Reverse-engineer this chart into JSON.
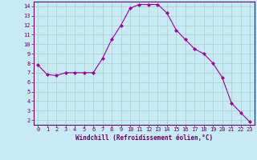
{
  "x": [
    0,
    1,
    2,
    3,
    4,
    5,
    6,
    7,
    8,
    9,
    10,
    11,
    12,
    13,
    14,
    15,
    16,
    17,
    18,
    19,
    20,
    21,
    22,
    23
  ],
  "y": [
    7.8,
    6.8,
    6.7,
    7.0,
    7.0,
    7.0,
    7.0,
    8.5,
    10.5,
    12.0,
    13.8,
    14.2,
    14.2,
    14.2,
    13.3,
    11.5,
    10.5,
    9.5,
    9.0,
    8.0,
    6.5,
    3.8,
    2.8,
    1.8
  ],
  "line_color": "#990099",
  "marker": "D",
  "marker_size": 2,
  "bg_color": "#c8eaf4",
  "grid_color": "#aacccc",
  "xlabel": "Windchill (Refroidissement éolien,°C)",
  "xlim": [
    -0.5,
    23.5
  ],
  "ylim": [
    1.5,
    14.5
  ],
  "xticks": [
    0,
    1,
    2,
    3,
    4,
    5,
    6,
    7,
    8,
    9,
    10,
    11,
    12,
    13,
    14,
    15,
    16,
    17,
    18,
    19,
    20,
    21,
    22,
    23
  ],
  "yticks": [
    2,
    3,
    4,
    5,
    6,
    7,
    8,
    9,
    10,
    11,
    12,
    13,
    14
  ],
  "tick_color": "#660066",
  "label_color": "#660066",
  "label_fontsize": 5.5,
  "tick_fontsize": 5.0
}
